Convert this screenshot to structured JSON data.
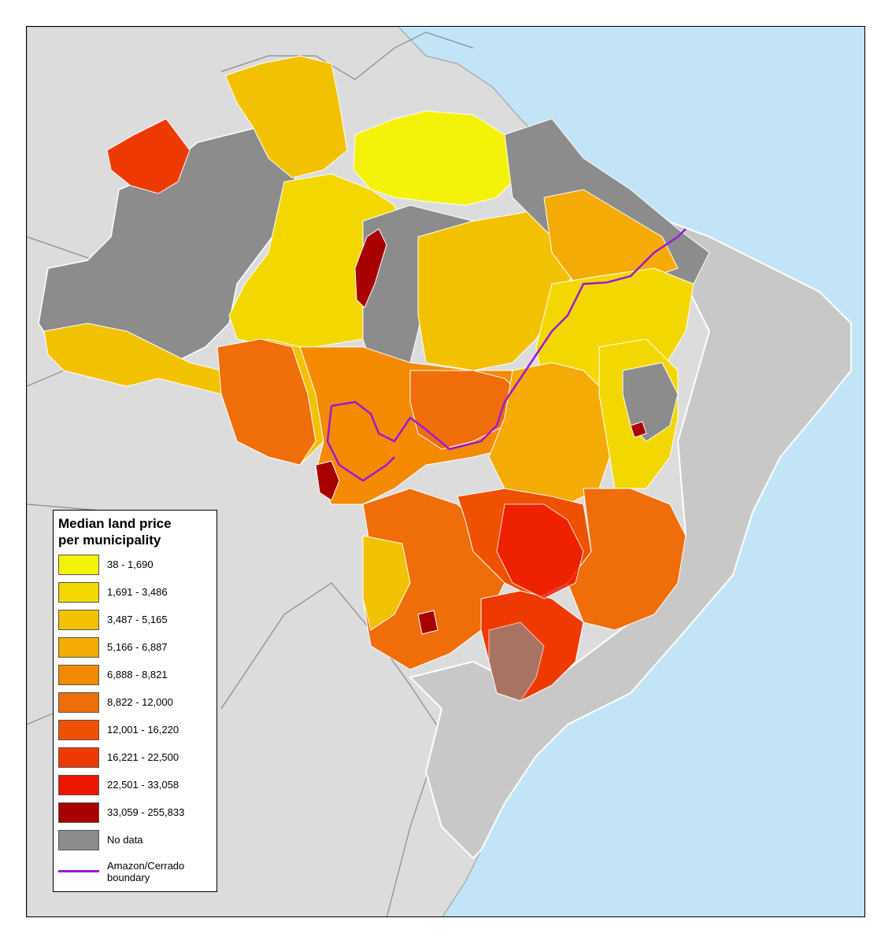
{
  "legend": {
    "title_line1": "Median land price",
    "title_line2": "per municipality",
    "items": [
      {
        "label": "38 - 1,690",
        "color": "#f5f20a"
      },
      {
        "label": "1,691 - 3,486",
        "color": "#f2d800"
      },
      {
        "label": "3,487 - 5,165",
        "color": "#f2c200"
      },
      {
        "label": "5,166 - 6,887",
        "color": "#f4ab06"
      },
      {
        "label": "6,888 - 8,821",
        "color": "#f48a00"
      },
      {
        "label": "8,822 - 12,000",
        "color": "#f06e0a"
      },
      {
        "label": "12,001 - 16,220",
        "color": "#ef5100"
      },
      {
        "label": "16,221 - 22,500",
        "color": "#ee3a00"
      },
      {
        "label": "22,501 - 33,058",
        "color": "#ee1600"
      },
      {
        "label": "33,059 - 255,833",
        "color": "#a80000"
      },
      {
        "label": "No data",
        "color": "#8c8c8c"
      }
    ],
    "boundary": {
      "label": "Amazon/Cerrado boundary",
      "color": "#9b19d6"
    }
  },
  "map": {
    "ocean_color": "#c3e4f7",
    "land_color": "#dcdcdc",
    "brazil_other_color": "#c8c8c8"
  }
}
